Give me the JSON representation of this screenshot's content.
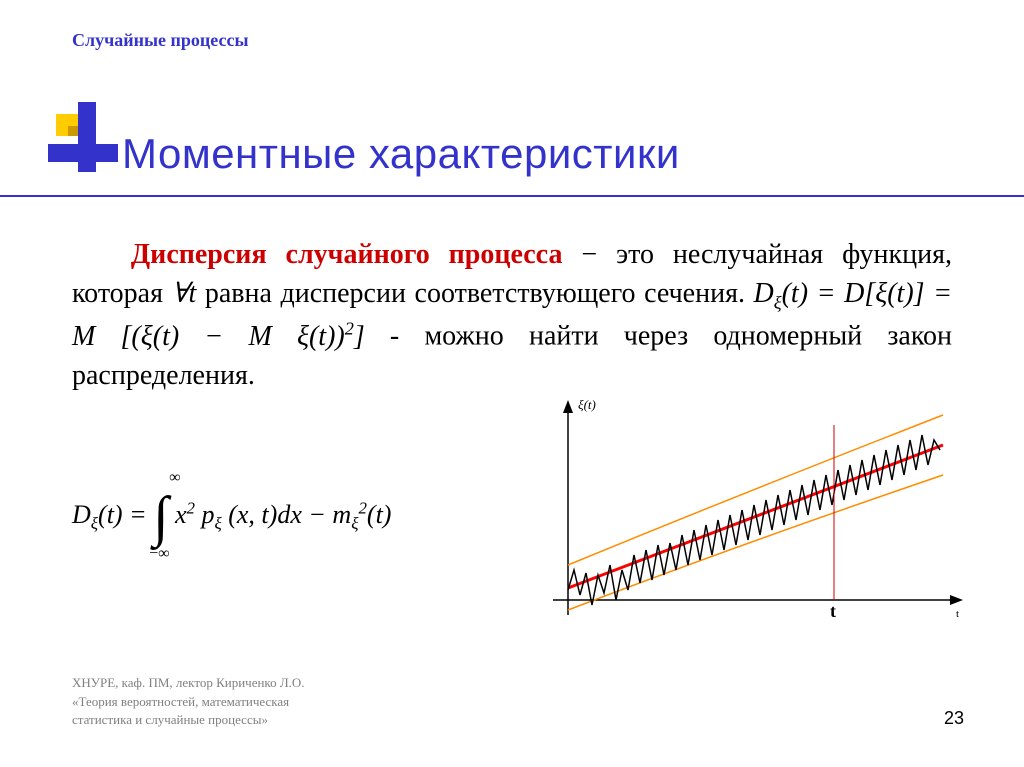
{
  "breadcrumb": "Случайные процессы",
  "title": "Моментные характеристики",
  "body": {
    "phrase1": "Дисперсия случайного процесса",
    "phrase2": " − это неслучайная функция, которая ",
    "forall": "∀t",
    "phrase3": " равна дисперсии соответствующего сечения.",
    "formula1": "Dξ(t) = D[ξ(t)] = M [(ξ(t) − M ξ(t))²]",
    "phrase4": " - можно найти через одномерный закон распределения."
  },
  "formula2": {
    "lhs": "Dξ(t) = ",
    "upper": "∞",
    "lower": "−∞",
    "integrand": " x² pξ (x, t) dx − mξ²(t)"
  },
  "chart": {
    "y_label": "ξ(t)",
    "x_tick": "t",
    "colors": {
      "axis": "#000000",
      "mean_line": "#ff0000",
      "envelope": "#ff8c00",
      "signal": "#000000",
      "marker_line": "#cc0000"
    },
    "axis_width": 1.5,
    "mean_line_width": 3,
    "envelope_width": 1.5,
    "signal_width": 1.5
  },
  "footer": {
    "line1": "ХНУРЕ, каф. ПМ, лектор Кириченко Л.О.",
    "line2": "«Теория вероятностей, математическая",
    "line3": "статистика и случайные процессы»"
  },
  "page": "23",
  "styles": {
    "breadcrumb_color": "#3333cc",
    "title_color": "#3333cc",
    "red_color": "#cc0000",
    "footer_color": "#808080",
    "title_fontsize": 42,
    "body_fontsize": 28,
    "breadcrumb_fontsize": 18,
    "footer_fontsize": 13
  },
  "signal_points": [
    [
      30,
      195
    ],
    [
      36,
      175
    ],
    [
      42,
      200
    ],
    [
      48,
      178
    ],
    [
      54,
      210
    ],
    [
      60,
      180
    ],
    [
      66,
      198
    ],
    [
      72,
      170
    ],
    [
      78,
      205
    ],
    [
      84,
      175
    ],
    [
      90,
      195
    ],
    [
      96,
      160
    ],
    [
      102,
      188
    ],
    [
      108,
      155
    ],
    [
      114,
      185
    ],
    [
      120,
      150
    ],
    [
      126,
      180
    ],
    [
      132,
      148
    ],
    [
      138,
      175
    ],
    [
      144,
      140
    ],
    [
      150,
      170
    ],
    [
      156,
      135
    ],
    [
      162,
      165
    ],
    [
      168,
      130
    ],
    [
      174,
      160
    ],
    [
      180,
      125
    ],
    [
      186,
      155
    ],
    [
      192,
      120
    ],
    [
      198,
      150
    ],
    [
      204,
      115
    ],
    [
      210,
      145
    ],
    [
      216,
      110
    ],
    [
      222,
      140
    ],
    [
      228,
      105
    ],
    [
      234,
      135
    ],
    [
      240,
      100
    ],
    [
      246,
      130
    ],
    [
      252,
      95
    ],
    [
      258,
      125
    ],
    [
      264,
      90
    ],
    [
      270,
      120
    ],
    [
      276,
      85
    ],
    [
      282,
      115
    ],
    [
      288,
      80
    ],
    [
      294,
      110
    ],
    [
      300,
      75
    ],
    [
      306,
      105
    ],
    [
      312,
      70
    ],
    [
      318,
      100
    ],
    [
      324,
      65
    ],
    [
      330,
      95
    ],
    [
      336,
      60
    ],
    [
      342,
      90
    ],
    [
      348,
      55
    ],
    [
      354,
      85
    ],
    [
      360,
      50
    ],
    [
      366,
      80
    ],
    [
      372,
      45
    ],
    [
      378,
      75
    ],
    [
      384,
      40
    ],
    [
      390,
      70
    ],
    [
      396,
      45
    ],
    [
      402,
      55
    ]
  ]
}
